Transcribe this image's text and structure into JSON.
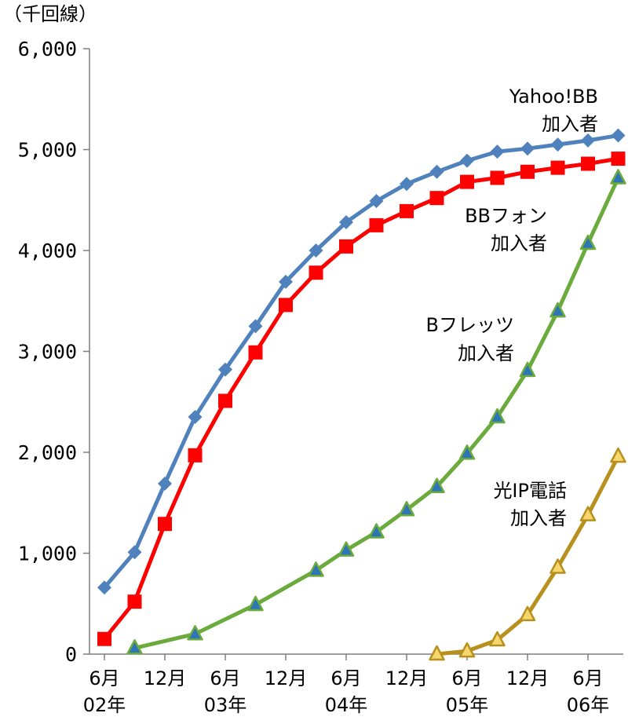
{
  "chart_data": {
    "type": "line",
    "unit_label": "（千回線）",
    "ylim": [
      0,
      6000
    ],
    "y_ticks": [
      "0",
      "1,000",
      "2,000",
      "3,000",
      "4,000",
      "5,000",
      "6,000"
    ],
    "x_tick_labels": [
      {
        "month": "6月",
        "year": "02年"
      },
      {
        "month": "12月",
        "year": ""
      },
      {
        "month": "6月",
        "year": "03年"
      },
      {
        "month": "12月",
        "year": ""
      },
      {
        "month": "6月",
        "year": "04年"
      },
      {
        "month": "12月",
        "year": ""
      },
      {
        "month": "6月",
        "year": "05年"
      },
      {
        "month": "12月",
        "year": ""
      },
      {
        "month": "6月",
        "year": "06年"
      }
    ],
    "x_periods": [
      "2002-06",
      "2002-09",
      "2002-12",
      "2003-03",
      "2003-06",
      "2003-09",
      "2003-12",
      "2004-03",
      "2004-06",
      "2004-09",
      "2004-12",
      "2005-03",
      "2005-06",
      "2005-09",
      "2005-12",
      "2006-03",
      "2006-06",
      "2006-09"
    ],
    "series": [
      {
        "name": "Yahoo!BB 加入者",
        "label_lines": [
          "Yahoo!BB",
          "加入者"
        ],
        "color": "#4F81BD",
        "marker": "diamond",
        "values": [
          660,
          1010,
          1690,
          2350,
          2820,
          3250,
          3690,
          4000,
          4280,
          4490,
          4660,
          4780,
          4890,
          4980,
          5010,
          5050,
          5090,
          5140
        ]
      },
      {
        "name": "BBフォン 加入者",
        "label_lines": [
          "BBフォン",
          "加入者"
        ],
        "color": "#FF0000",
        "marker": "square",
        "values": [
          150,
          520,
          1290,
          1970,
          2510,
          2990,
          3460,
          3780,
          4040,
          4250,
          4390,
          4520,
          4680,
          4720,
          4780,
          4820,
          4860,
          4910
        ]
      },
      {
        "name": "Bフレッツ 加入者",
        "label_lines": [
          "Bフレッツ",
          "加入者"
        ],
        "color": "#6BAA3C",
        "marker_fill": "#2E75B6",
        "marker": "triangle",
        "values": [
          null,
          60,
          null,
          200,
          null,
          490,
          null,
          830,
          1030,
          1210,
          1430,
          1660,
          1990,
          2350,
          2810,
          3400,
          4070,
          4720
        ]
      },
      {
        "name": "光IP電話 加入者",
        "label_lines": [
          "光IP電話",
          "加入者"
        ],
        "color": "#B8901E",
        "marker_fill": "#F5D76E",
        "marker": "triangle",
        "values": [
          null,
          null,
          null,
          null,
          null,
          null,
          null,
          null,
          null,
          null,
          null,
          0,
          30,
          140,
          390,
          860,
          1380,
          1960
        ]
      }
    ]
  }
}
